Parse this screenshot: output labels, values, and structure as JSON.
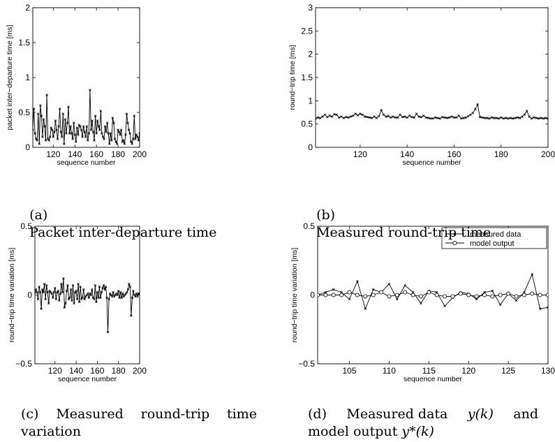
{
  "panels": [
    {
      "caption": {
        "label": "(a)",
        "text": "Packet inter-departure time"
      },
      "chart_data": {
        "type": "line",
        "xlabel": "sequence number",
        "ylabel": "packet inter−departure time [ms]",
        "xlim": [
          101,
          200
        ],
        "ylim": [
          0,
          2
        ],
        "xticks": [
          120,
          140,
          160,
          180,
          200
        ],
        "yticks": [
          0,
          0.5,
          1,
          1.5,
          2
        ],
        "ytick_labels": [
          "0",
          "0.5",
          "1",
          "1.5",
          "2"
        ],
        "grid": false,
        "marker": "x",
        "series": [
          {
            "x_start": 101,
            "values": [
              0.25,
              0.55,
              0.2,
              0.12,
              0.1,
              0.48,
              0.05,
              0.6,
              0.45,
              0.15,
              0.4,
              0.3,
              0.1,
              0.75,
              0.12,
              0.1,
              0.15,
              0.28,
              0.25,
              0.15,
              0.22,
              0.38,
              0.25,
              0.12,
              0.3,
              0.55,
              0.22,
              0.15,
              0.48,
              0.05,
              0.4,
              0.2,
              0.35,
              0.58,
              0.2,
              0.3,
              0.2,
              0.12,
              0.35,
              0.18,
              0.08,
              0.28,
              0.18,
              0.32,
              0.3,
              0.25,
              0.15,
              0.3,
              0.22,
              0.15,
              0.3,
              0.1,
              0.2,
              0.82,
              0.25,
              0.38,
              0.22,
              0.1,
              0.45,
              0.2,
              0.38,
              0.3,
              0.25,
              0.52,
              0.2,
              0.15,
              0.12,
              0.3,
              0.22,
              0.35,
              0.2,
              0.05,
              0.2,
              0.1,
              0.42,
              0.35,
              0.12,
              0.08,
              0.05,
              0.25,
              0.22,
              0.18,
              0.25,
              0.08,
              0.1,
              0.05,
              0.18,
              0.48,
              0.35,
              0.25,
              0.2,
              0.08,
              0.05,
              0.12,
              0.45,
              0.12,
              0.18,
              0.15,
              0.1,
              0.2
            ]
          }
        ]
      }
    },
    {
      "caption": {
        "label": "(b)",
        "text": "Measured round-trip time"
      },
      "chart_data": {
        "type": "line",
        "xlabel": "sequence number",
        "ylabel": "round−trip time [ms]",
        "xlim": [
          101,
          200
        ],
        "ylim": [
          0,
          3
        ],
        "xticks": [
          120,
          140,
          160,
          180,
          200
        ],
        "yticks": [
          0,
          0.5,
          1,
          1.5,
          2,
          2.5,
          3
        ],
        "ytick_labels": [
          "0",
          "0.5",
          "1",
          "1.5",
          "2",
          "2.5",
          "3"
        ],
        "grid": false,
        "marker": "x",
        "series": [
          {
            "x_start": 101,
            "values": [
              0.62,
              0.64,
              0.63,
              0.66,
              0.7,
              0.65,
              0.68,
              0.66,
              0.71,
              0.7,
              0.64,
              0.66,
              0.63,
              0.65,
              0.64,
              0.66,
              0.68,
              0.72,
              0.69,
              0.72,
              0.7,
              0.66,
              0.65,
              0.64,
              0.63,
              0.66,
              0.63,
              0.67,
              0.8,
              0.7,
              0.66,
              0.67,
              0.64,
              0.66,
              0.64,
              0.64,
              0.7,
              0.65,
              0.66,
              0.64,
              0.68,
              0.65,
              0.64,
              0.72,
              0.66,
              0.65,
              0.68,
              0.64,
              0.63,
              0.62,
              0.62,
              0.64,
              0.63,
              0.62,
              0.65,
              0.64,
              0.63,
              0.64,
              0.66,
              0.64,
              0.64,
              0.68,
              0.62,
              0.63,
              0.64,
              0.67,
              0.7,
              0.74,
              0.82,
              0.92,
              0.65,
              0.64,
              0.63,
              0.63,
              0.62,
              0.64,
              0.63,
              0.63,
              0.62,
              0.64,
              0.62,
              0.63,
              0.62,
              0.63,
              0.62,
              0.63,
              0.64,
              0.63,
              0.66,
              0.7,
              0.78,
              0.66,
              0.62,
              0.64,
              0.63,
              0.62,
              0.63,
              0.62,
              0.63,
              0.62
            ]
          }
        ]
      }
    },
    {
      "caption": {
        "label": "(c)",
        "text": "Measured round-trip time variation"
      },
      "chart_data": {
        "type": "line",
        "xlabel": "sequence number",
        "ylabel": "round−trip time variation [ms]",
        "xlim": [
          101,
          200
        ],
        "ylim": [
          -0.5,
          0.5
        ],
        "xticks": [
          120,
          140,
          160,
          180,
          200
        ],
        "yticks": [
          -0.5,
          0,
          0.5
        ],
        "ytick_labels": [
          "−0.5",
          "0",
          "0.5"
        ],
        "grid": false,
        "marker": "x",
        "series": [
          {
            "x_start": 101,
            "values": [
              0.02,
              0.04,
              0.02,
              -0.03,
              0.06,
              0.02,
              -0.1,
              0.04,
              0.02,
              0.08,
              -0.03,
              0.07,
              0.02,
              -0.06,
              0.03,
              0.02,
              0.01,
              -0.02,
              0.02,
              0.05,
              -0.03,
              0.02,
              0.03,
              -0.04,
              0.01,
              0.08,
              0.02,
              0.12,
              -0.09,
              -0.06,
              0.03,
              0.07,
              -0.03,
              -0.02,
              0.04,
              -0.04,
              0.07,
              -0.06,
              0.02,
              0.03,
              -0.03,
              0.08,
              -0.05,
              0.06,
              -0.03,
              -0.02,
              0.04,
              -0.03,
              -0.01,
              0.0,
              0.01,
              -0.02,
              0.01,
              0.0,
              0.04,
              -0.02,
              -0.03,
              0.07,
              -0.05,
              0.02,
              -0.02,
              0.06,
              -0.02,
              0.02,
              0.05,
              0.07,
              0.04,
              0.06,
              -0.02,
              -0.27,
              -0.03,
              0.01,
              0.0,
              -0.01,
              0.02,
              -0.01,
              0.0,
              0.01,
              0.0,
              0.03,
              -0.02,
              0.02,
              -0.02,
              0.01,
              -0.01,
              0.0,
              0.01,
              0.02,
              0.04,
              0.08,
              0.06,
              -0.15,
              -0.02,
              0.03,
              0.0,
              -0.01,
              0.01,
              -0.01,
              0.01,
              0.01
            ]
          }
        ]
      }
    },
    {
      "caption": {
        "label": "(d)",
        "line1": "Measured data",
        "math1": "y(k)",
        "and": "and",
        "line2": "model output",
        "math2": "y*(k)"
      },
      "chart_data": {
        "type": "line",
        "xlabel": "sequence number",
        "ylabel": "round−trip time variation [ms]",
        "xlim": [
          101,
          130
        ],
        "ylim": [
          -0.5,
          0.5
        ],
        "xticks": [
          105,
          110,
          115,
          120,
          125,
          130
        ],
        "yticks": [
          -0.5,
          0,
          0.5
        ],
        "ytick_labels": [
          "−0.5",
          "0",
          "0.5"
        ],
        "grid": false,
        "legend_position": "top-right",
        "x": [
          101,
          102,
          103,
          104,
          105,
          106,
          107,
          108,
          109,
          110,
          111,
          112,
          113,
          114,
          115,
          116,
          117,
          118,
          119,
          120,
          121,
          122,
          123,
          124,
          125,
          126,
          127,
          128,
          129,
          130
        ],
        "series": [
          {
            "name": "measured data",
            "marker": "x",
            "values": [
              0.0,
              0.02,
              0.04,
              0.02,
              -0.03,
              0.1,
              -0.1,
              0.04,
              0.02,
              0.08,
              -0.03,
              0.07,
              0.02,
              -0.06,
              0.03,
              0.02,
              -0.08,
              -0.02,
              0.02,
              0.01,
              -0.03,
              0.02,
              0.03,
              -0.07,
              0.01,
              -0.04,
              0.02,
              0.15,
              -0.1,
              -0.09
            ]
          },
          {
            "name": "model output",
            "marker": "o",
            "values": [
              0.0,
              0.0,
              0.0,
              0.0,
              0.02,
              0.0,
              -0.01,
              0.0,
              0.02,
              -0.01,
              0.0,
              0.02,
              0.0,
              -0.01,
              0.02,
              0.0,
              -0.01,
              -0.01,
              0.01,
              0.0,
              -0.01,
              0.0,
              -0.01,
              0.0,
              0.01,
              -0.01,
              0.0,
              0.01,
              0.0,
              0.0
            ]
          }
        ]
      }
    }
  ]
}
